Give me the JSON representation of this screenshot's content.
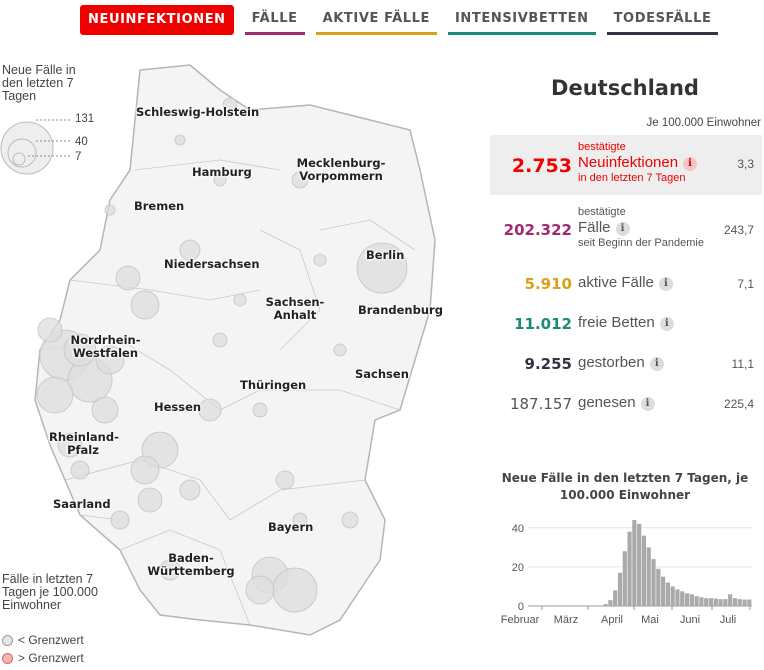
{
  "tabs": [
    {
      "label": "NEUINFEKTIONEN",
      "color": "#ee0000"
    },
    {
      "label": "FÄLLE",
      "color": "#a02a6f"
    },
    {
      "label": "AKTIVE FÄLLE",
      "color": "#d9a21b"
    },
    {
      "label": "INTENSIVBETTEN",
      "color": "#1b8a77"
    },
    {
      "label": "TODESFÄLLE",
      "color": "#333344"
    }
  ],
  "legend_size": {
    "title": "Neue Fälle in den letzten 7 Tagen",
    "values": [
      "131",
      "40",
      "7"
    ]
  },
  "map_labels": [
    "Schleswig-Holstein",
    "Hamburg",
    "Mecklenburg-Vorpommern",
    "Bremen",
    "Niedersachsen",
    "Berlin",
    "Sachsen-Anhalt",
    "Brandenburg",
    "Nordrhein-Westfalen",
    "Thüringen",
    "Sachsen",
    "Hessen",
    "Rheinland-Pfalz",
    "Saarland",
    "Bayern",
    "Baden-Württemberg"
  ],
  "legend_threshold": {
    "title": "Fälle in letzten 7 Tagen je 100.000 Einwohner",
    "below": "< Grenzwert",
    "above": "> Grenzwert"
  },
  "panel": {
    "country": "Deutschland",
    "per100": "Je 100.000 Einwohner",
    "per100_arrow": "↓",
    "stats": {
      "neu": {
        "pre": "bestätigte",
        "label": "Neuinfektionen",
        "post": "in den letzten 7 Tagen",
        "value": "2.753",
        "per100": "3,3",
        "color": "#ee0000"
      },
      "faelle": {
        "pre": "bestätigte",
        "label": "Fälle",
        "post": "seit Beginn der Pandemie",
        "value": "202.322",
        "per100": "243,7",
        "color": "#a02a6f"
      },
      "aktiv": {
        "label": "aktive Fälle",
        "value": "5.910",
        "per100": "7,1",
        "color": "#d9a21b"
      },
      "betten": {
        "label": "freie Betten",
        "value": "11.012",
        "color": "#1b8a77"
      },
      "tote": {
        "label": "gestorben",
        "value": "9.255",
        "per100": "11,1",
        "color": "#333344"
      },
      "genesen": {
        "label": "genesen",
        "value": "187.157",
        "per100": "225,4",
        "color": "#555555"
      }
    },
    "info_glyph": "i"
  },
  "chart_data": {
    "type": "area",
    "title": "Neue Fälle in den letzten 7 Tagen, je 100.000 Einwohner",
    "x_ticks": [
      "Februar",
      "März",
      "April",
      "Mai",
      "Juni",
      "Juli"
    ],
    "y_ticks": [
      "0",
      "20",
      "40"
    ],
    "ylim": [
      0,
      45
    ],
    "weekly_per100k": [
      0,
      0,
      0,
      0,
      0,
      0.1,
      0.3,
      1,
      3,
      8,
      17,
      28,
      38,
      44,
      42,
      36,
      30,
      24,
      19,
      15,
      12,
      10,
      8.5,
      7.5,
      6.5,
      6,
      5,
      4.5,
      4,
      4,
      3.8,
      3.5,
      3.5,
      6,
      4,
      3.5,
      3.3,
      3.3
    ]
  }
}
